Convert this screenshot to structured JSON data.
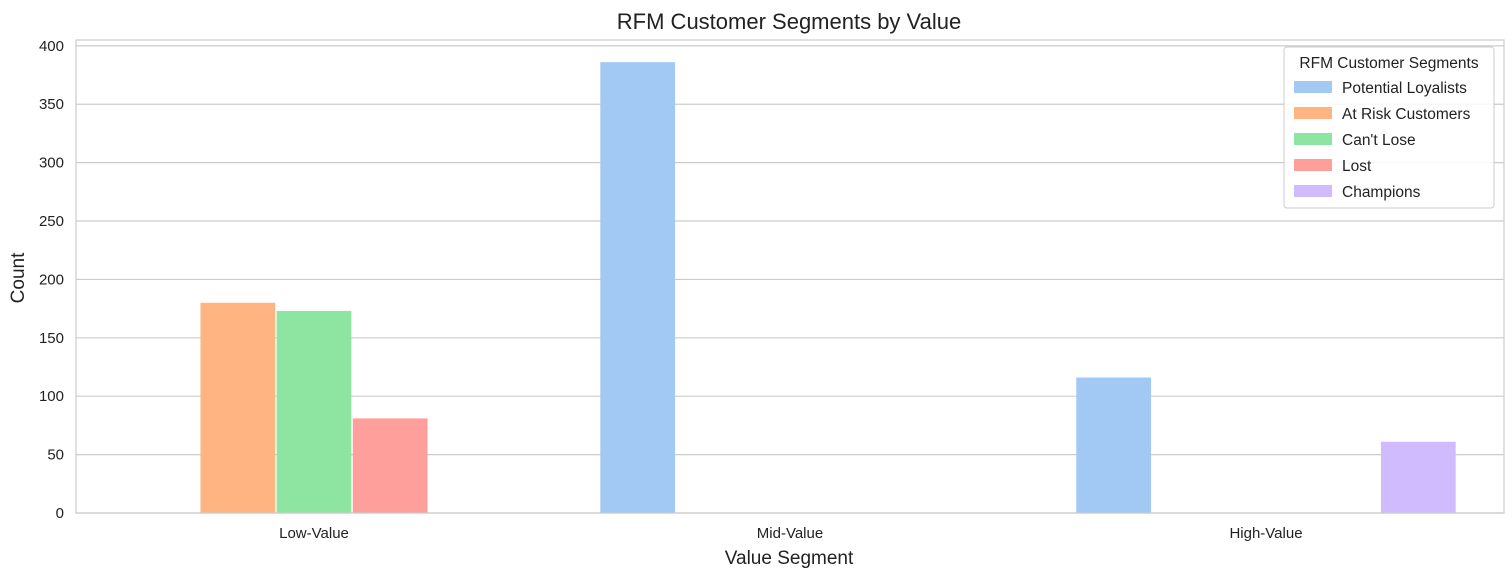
{
  "chart_data": {
    "type": "bar",
    "title": "RFM Customer Segments by Value",
    "xlabel": "Value Segment",
    "ylabel": "Count",
    "ylim": [
      0,
      405
    ],
    "yticks": [
      0,
      50,
      100,
      150,
      200,
      250,
      300,
      350,
      400
    ],
    "grid": true,
    "categories": [
      "Low-Value",
      "Mid-Value",
      "High-Value"
    ],
    "legend": {
      "title": "RFM Customer Segments",
      "placement": "top-right"
    },
    "series": [
      {
        "name": "Potential Loyalists",
        "color": "#a1c9f4",
        "values": [
          0,
          386,
          116
        ]
      },
      {
        "name": "At Risk Customers",
        "color": "#ffb482",
        "values": [
          180,
          0,
          0
        ]
      },
      {
        "name": "Can't Lose",
        "color": "#8de5a1",
        "values": [
          173,
          0,
          0
        ]
      },
      {
        "name": "Lost",
        "color": "#ff9f9b",
        "values": [
          81,
          0,
          0
        ]
      },
      {
        "name": "Champions",
        "color": "#d0bbff",
        "values": [
          0,
          0,
          61
        ]
      }
    ]
  }
}
